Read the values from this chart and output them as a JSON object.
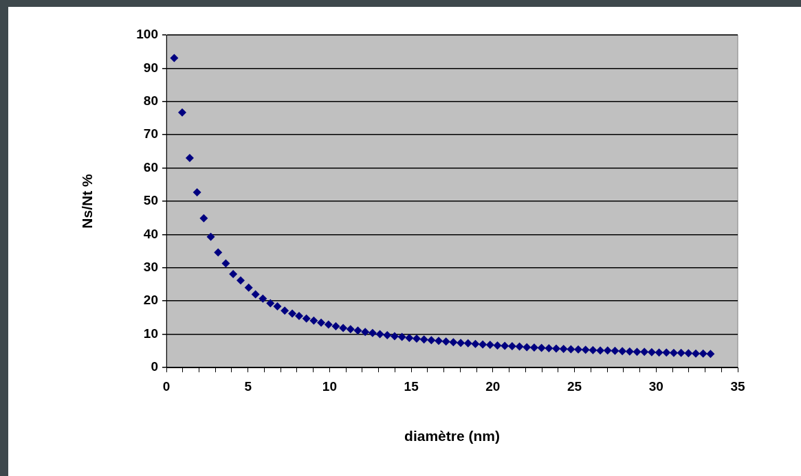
{
  "chart_data": {
    "type": "scatter",
    "xlabel": "diamètre (nm)",
    "ylabel": "Ns/Nt %",
    "marker": "diamond",
    "grid": "y",
    "legend": false,
    "xlim": [
      0,
      35
    ],
    "ylim": [
      0,
      100
    ],
    "xticks": [
      0,
      {
        "value": 1,
        "label": null
      },
      {
        "value": 2,
        "label": null
      },
      {
        "value": 3,
        "label": null
      },
      {
        "value": 4,
        "label": null
      },
      5,
      {
        "value": 6,
        "label": null
      },
      {
        "value": 7,
        "label": null
      },
      {
        "value": 8,
        "label": null
      },
      {
        "value": 9,
        "label": null
      },
      10,
      {
        "value": 11,
        "label": null
      },
      {
        "value": 12,
        "label": null
      },
      {
        "value": 13,
        "label": null
      },
      {
        "value": 14,
        "label": null
      },
      15,
      {
        "value": 16,
        "label": null
      },
      {
        "value": 17,
        "label": null
      },
      {
        "value": 18,
        "label": null
      },
      {
        "value": 19,
        "label": null
      },
      20,
      {
        "value": 21,
        "label": null
      },
      {
        "value": 22,
        "label": null
      },
      {
        "value": 23,
        "label": null
      },
      {
        "value": 24,
        "label": null
      },
      25,
      {
        "value": 26,
        "label": null
      },
      {
        "value": 27,
        "label": null
      },
      {
        "value": 28,
        "label": null
      },
      {
        "value": 29,
        "label": null
      },
      30,
      {
        "value": 31,
        "label": null
      },
      {
        "value": 32,
        "label": null
      },
      {
        "value": 33,
        "label": null
      },
      {
        "value": 34,
        "label": null
      },
      35
    ],
    "yticks": [
      0,
      10,
      20,
      30,
      40,
      50,
      60,
      70,
      80,
      90,
      100
    ],
    "series": [
      {
        "color": "#000080",
        "x": [
          0.48,
          0.97,
          1.43,
          1.88,
          2.29,
          2.72,
          3.17,
          3.64,
          4.09,
          4.55,
          5.04,
          5.46,
          5.91,
          6.37,
          6.8,
          7.25,
          7.71,
          8.13,
          8.58,
          9.03,
          9.48,
          9.93,
          10.38,
          10.83,
          11.28,
          11.73,
          12.18,
          12.63,
          13.08,
          13.53,
          13.98,
          14.43,
          14.88,
          15.33,
          15.78,
          16.23,
          16.68,
          17.13,
          17.58,
          18.03,
          18.48,
          18.93,
          19.38,
          19.83,
          20.28,
          20.73,
          21.18,
          21.63,
          22.08,
          22.53,
          22.98,
          23.43,
          23.88,
          24.33,
          24.78,
          25.23,
          25.68,
          26.13,
          26.58,
          27.03,
          27.48,
          27.93,
          28.38,
          28.83,
          29.28,
          29.73,
          30.18,
          30.63,
          31.08,
          31.53,
          31.98,
          32.43,
          32.88,
          33.33
        ],
        "values": [
          93.1,
          76.7,
          63.0,
          52.7,
          44.9,
          39.3,
          34.6,
          31.3,
          28.1,
          26.2,
          24.0,
          22.0,
          20.7,
          19.3,
          18.4,
          17.1,
          16.2,
          15.5,
          14.7,
          14.1,
          13.5,
          12.9,
          12.4,
          11.9,
          11.5,
          11.1,
          10.7,
          10.4,
          10.0,
          9.7,
          9.4,
          9.2,
          8.9,
          8.7,
          8.4,
          8.2,
          8.0,
          7.8,
          7.6,
          7.4,
          7.3,
          7.1,
          6.9,
          6.8,
          6.6,
          6.5,
          6.4,
          6.3,
          6.1,
          6.0,
          5.9,
          5.8,
          5.7,
          5.6,
          5.5,
          5.4,
          5.3,
          5.2,
          5.1,
          5.1,
          5.0,
          4.9,
          4.8,
          4.7,
          4.7,
          4.6,
          4.5,
          4.5,
          4.4,
          4.4,
          4.3,
          4.2,
          4.2,
          4.1
        ]
      }
    ]
  }
}
